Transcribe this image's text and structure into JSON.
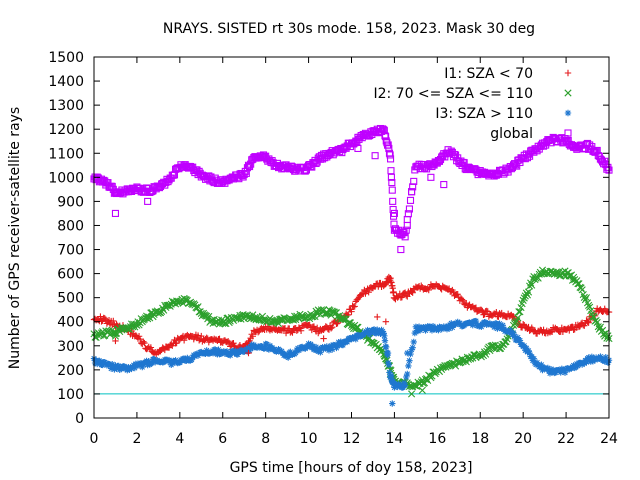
{
  "chart_data": {
    "type": "scatter",
    "title": "NRAYS. SISTED rt 30s mode. 158, 2023. Mask 30 deg",
    "xlabel": "GPS time [hours of doy 158, 2023]",
    "ylabel": "Number of GPS receiver-satellite rays",
    "xlim": [
      0,
      24
    ],
    "ylim": [
      0,
      1500
    ],
    "xticks": [
      0,
      2,
      4,
      6,
      8,
      10,
      12,
      14,
      16,
      18,
      20,
      22,
      24
    ],
    "yticks": [
      0,
      100,
      200,
      300,
      400,
      500,
      600,
      700,
      800,
      900,
      1000,
      1100,
      1200,
      1300,
      1400,
      1500
    ],
    "legend_position": "top-right",
    "reference_line": {
      "y": 100,
      "color": "#00c0c0"
    },
    "series": [
      {
        "name": "I1: SZA < 70",
        "marker": "plus",
        "color": "#e41a1c",
        "x": [
          0,
          0.5,
          1,
          1.5,
          2,
          2.5,
          3,
          3.5,
          4,
          4.5,
          5,
          5.5,
          6,
          6.5,
          7,
          7.5,
          8,
          8.5,
          9,
          9.5,
          10,
          10.5,
          11,
          11.5,
          12,
          12.5,
          13,
          13.5,
          13.8,
          14,
          14.5,
          15,
          15.5,
          16,
          16.5,
          17,
          17.5,
          18,
          18.5,
          19,
          19.5,
          20,
          20.5,
          21,
          21.5,
          22,
          22.5,
          23,
          23.5,
          24
        ],
        "values": [
          420,
          405,
          390,
          370,
          340,
          290,
          270,
          300,
          330,
          340,
          330,
          320,
          320,
          300,
          290,
          360,
          370,
          370,
          360,
          370,
          380,
          360,
          380,
          410,
          450,
          520,
          540,
          560,
          580,
          500,
          510,
          540,
          540,
          550,
          540,
          500,
          460,
          440,
          430,
          430,
          420,
          380,
          360,
          360,
          370,
          360,
          380,
          400,
          450,
          440
        ]
      },
      {
        "name": "I2: 70 <= SZA <= 110",
        "marker": "cross",
        "color": "#2ca02c",
        "x": [
          0,
          0.5,
          1,
          1.5,
          2,
          2.5,
          3,
          3.5,
          4,
          4.5,
          5,
          5.5,
          6,
          6.5,
          7,
          7.5,
          8,
          8.5,
          9,
          9.5,
          10,
          10.5,
          11,
          11.5,
          12,
          12.5,
          13,
          13.5,
          13.8,
          14,
          14.5,
          15,
          15.5,
          16,
          16.5,
          17,
          17.5,
          18,
          18.5,
          19,
          19.5,
          20,
          20.5,
          21,
          21.5,
          22,
          22.5,
          23,
          23.5,
          24
        ],
        "values": [
          340,
          350,
          360,
          370,
          390,
          420,
          440,
          470,
          490,
          480,
          440,
          400,
          400,
          410,
          420,
          420,
          410,
          400,
          410,
          420,
          420,
          440,
          440,
          420,
          390,
          350,
          310,
          270,
          200,
          150,
          140,
          140,
          160,
          200,
          210,
          230,
          250,
          260,
          290,
          300,
          370,
          480,
          580,
          610,
          600,
          600,
          570,
          480,
          380,
          330
        ]
      },
      {
        "name": "I3: SZA > 110",
        "marker": "star",
        "color": "#1f77d0",
        "x": [
          0,
          0.5,
          1,
          1.5,
          2,
          2.5,
          3,
          3.5,
          4,
          4.5,
          5,
          5.5,
          6,
          6.5,
          7,
          7.5,
          8,
          8.5,
          9,
          9.5,
          10,
          10.5,
          11,
          11.5,
          12,
          12.5,
          13,
          13.5,
          13.8,
          14,
          14.5,
          15,
          15.5,
          16,
          16.5,
          17,
          17.5,
          18,
          18.5,
          19,
          19.5,
          20,
          20.5,
          21,
          21.5,
          22,
          22.5,
          23,
          23.5,
          24
        ],
        "values": [
          240,
          225,
          210,
          205,
          215,
          230,
          240,
          230,
          230,
          250,
          270,
          280,
          270,
          270,
          280,
          300,
          300,
          280,
          260,
          280,
          300,
          280,
          290,
          310,
          330,
          350,
          360,
          360,
          180,
          130,
          140,
          370,
          370,
          375,
          380,
          390,
          395,
          390,
          385,
          380,
          350,
          300,
          240,
          200,
          190,
          200,
          220,
          240,
          250,
          240
        ]
      },
      {
        "name": "global",
        "marker": "square",
        "color": "#bf00ff",
        "x": [
          0,
          0.5,
          1,
          1.5,
          2,
          2.5,
          3,
          3.5,
          4,
          4.5,
          5,
          5.5,
          6,
          6.5,
          7,
          7.5,
          8,
          8.5,
          9,
          9.5,
          10,
          10.5,
          11,
          11.5,
          12,
          12.5,
          13,
          13.5,
          13.8,
          14,
          14.5,
          15,
          15.5,
          16,
          16.5,
          17,
          17.5,
          18,
          18.5,
          19,
          19.5,
          20,
          20.5,
          21,
          21.5,
          22,
          22.5,
          23,
          23.5,
          24
        ],
        "values": [
          1000,
          980,
          940,
          940,
          950,
          945,
          960,
          990,
          1050,
          1040,
          1010,
          990,
          980,
          1000,
          1010,
          1090,
          1080,
          1050,
          1040,
          1030,
          1040,
          1080,
          1100,
          1110,
          1140,
          1170,
          1190,
          1200,
          1100,
          780,
          760,
          1050,
          1040,
          1060,
          1110,
          1070,
          1030,
          1020,
          1010,
          1020,
          1040,
          1080,
          1110,
          1140,
          1160,
          1150,
          1120,
          1130,
          1100,
          1030
        ]
      }
    ],
    "sparse_points": [
      {
        "series": 0,
        "x": 1.0,
        "y": 320
      },
      {
        "series": 0,
        "x": 7.2,
        "y": 270
      },
      {
        "series": 0,
        "x": 10.7,
        "y": 330
      },
      {
        "series": 0,
        "x": 13.2,
        "y": 420
      },
      {
        "series": 0,
        "x": 13.6,
        "y": 400
      },
      {
        "series": 1,
        "x": 1.0,
        "y": 340
      },
      {
        "series": 1,
        "x": 14.8,
        "y": 100
      },
      {
        "series": 1,
        "x": 15.3,
        "y": 115
      },
      {
        "series": 2,
        "x": 13.7,
        "y": 270
      },
      {
        "series": 2,
        "x": 13.9,
        "y": 60
      },
      {
        "series": 2,
        "x": 14.6,
        "y": 270
      },
      {
        "series": 3,
        "x": 1.0,
        "y": 850
      },
      {
        "series": 3,
        "x": 2.5,
        "y": 900
      },
      {
        "series": 3,
        "x": 12.3,
        "y": 1120
      },
      {
        "series": 3,
        "x": 13.1,
        "y": 1090
      },
      {
        "series": 3,
        "x": 14.0,
        "y": 850
      },
      {
        "series": 3,
        "x": 14.3,
        "y": 700
      },
      {
        "series": 3,
        "x": 14.6,
        "y": 800
      },
      {
        "series": 3,
        "x": 14.8,
        "y": 940
      },
      {
        "series": 3,
        "x": 15.7,
        "y": 1000
      },
      {
        "series": 3,
        "x": 16.3,
        "y": 970
      }
    ]
  }
}
